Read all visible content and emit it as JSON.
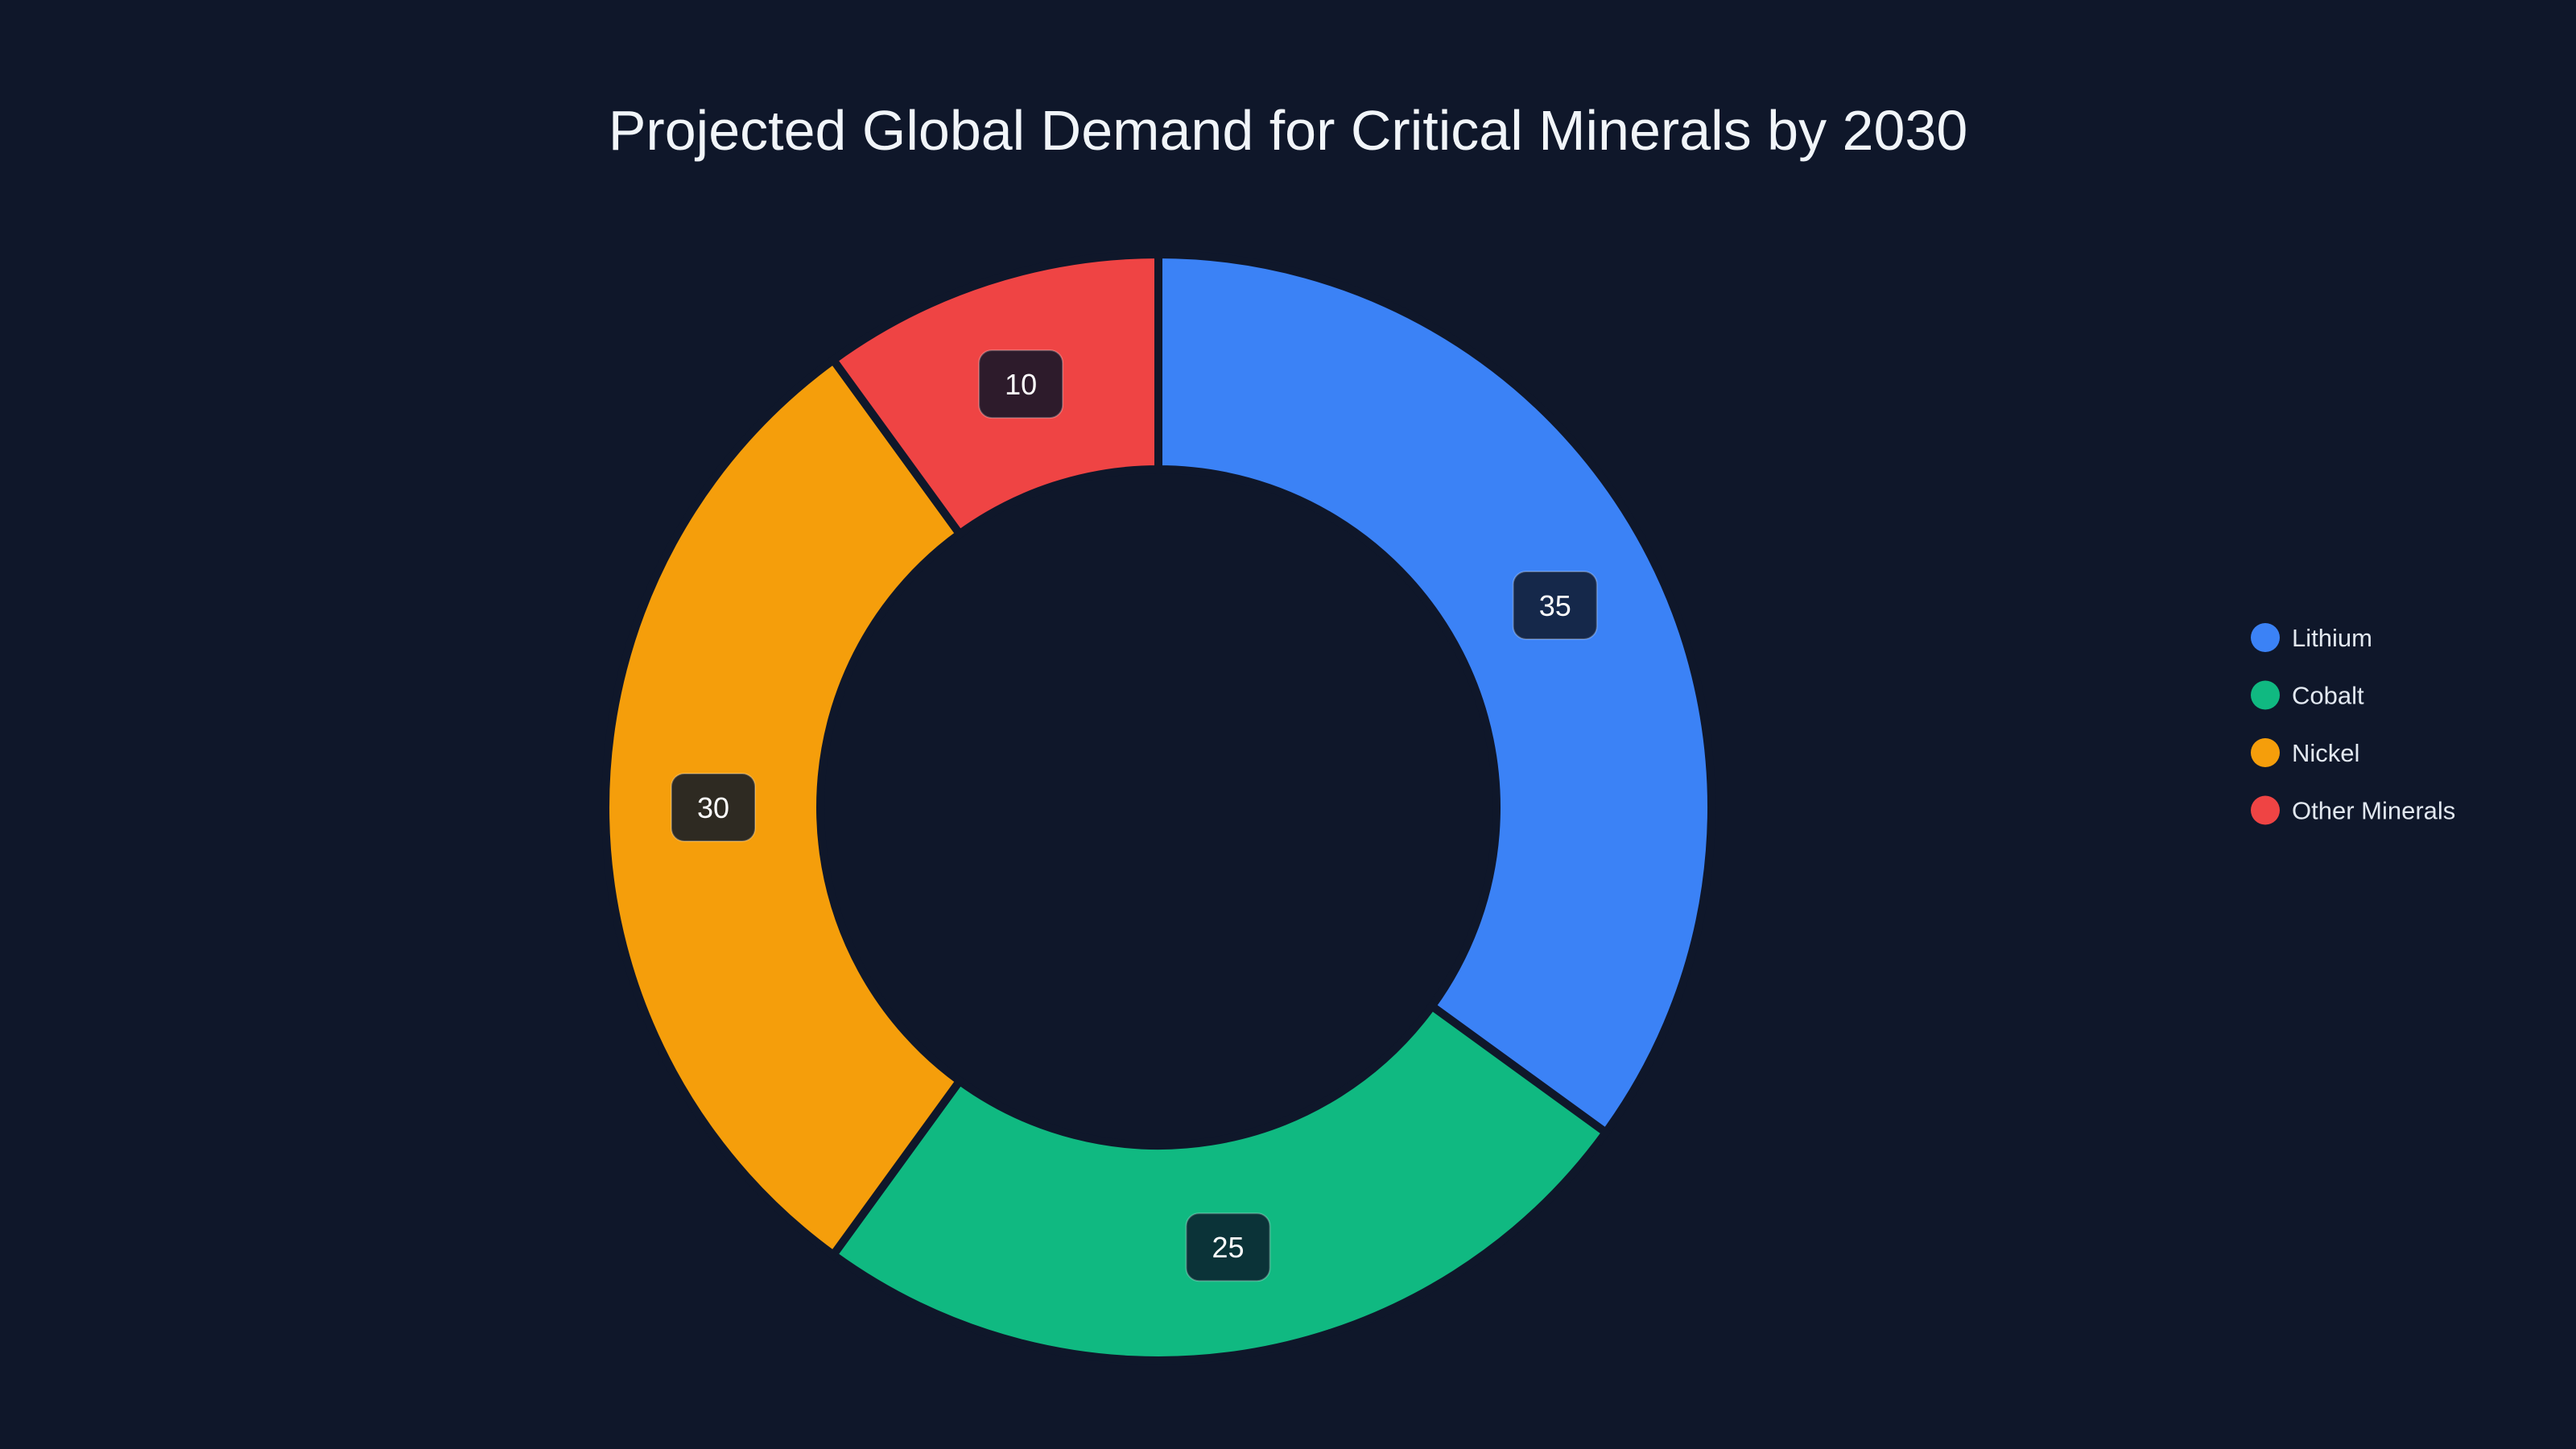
{
  "chart_data": {
    "type": "pie",
    "variant": "donut",
    "title": "Projected Global Demand for Critical Minerals by 2030",
    "categories": [
      "Lithium",
      "Cobalt",
      "Nickel",
      "Other Minerals"
    ],
    "values": [
      35,
      25,
      30,
      10
    ],
    "colors": [
      "#3b82f6",
      "#10b981",
      "#f59e0b",
      "#ef4444"
    ],
    "label_fills": [
      "#15284a",
      "#0b3338",
      "#2e2a22",
      "#2d1b2b"
    ],
    "legend": {
      "placement": "right",
      "entries": [
        "Lithium",
        "Cobalt",
        "Nickel",
        "Other Minerals"
      ]
    },
    "background": "#0f172a"
  }
}
